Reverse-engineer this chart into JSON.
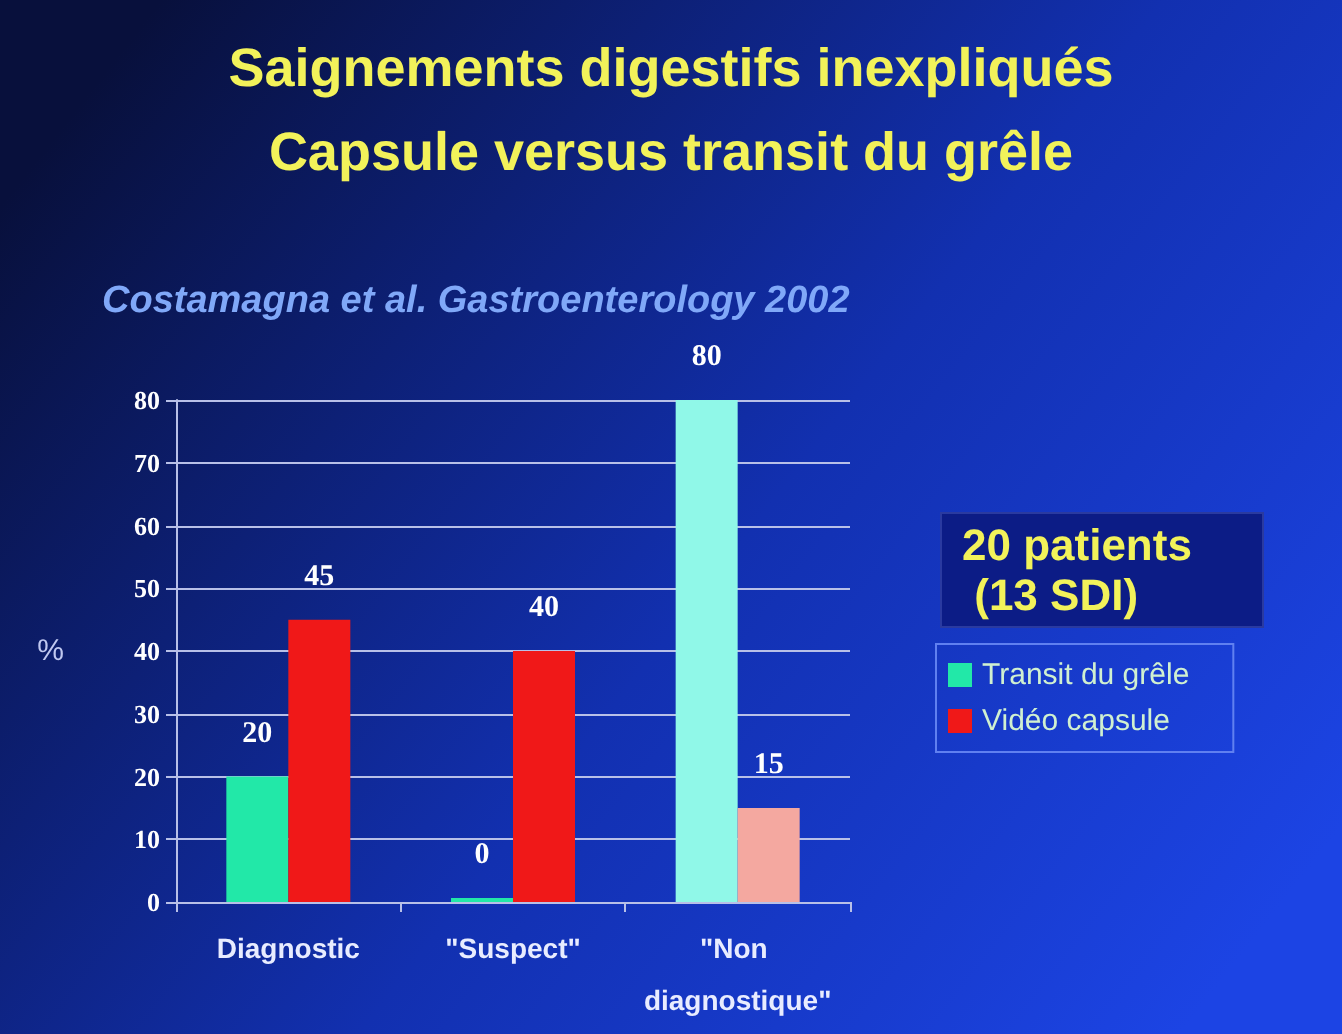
{
  "chart_data": {
    "type": "bar",
    "title": "Saignements digestifs inexpliqués\nCapsule versus transit du grêle",
    "subtitle": "Costamagna et al. Gastroenterology 2002",
    "ylabel": "%",
    "categories": [
      "Diagnostic",
      "\"Suspect\"",
      "\"Non diagnostique\""
    ],
    "series": [
      {
        "name": "Transit du grêle",
        "color": "#22e8a8",
        "colors": [
          "#22e8a8",
          "#22e8a8",
          "#90f8e8"
        ],
        "values": [
          20,
          0,
          80
        ]
      },
      {
        "name": "Vidéo capsule",
        "color": "#f01818",
        "colors": [
          "#f01818",
          "#f01818",
          "#f4a8a0"
        ],
        "values": [
          45,
          40,
          15
        ]
      }
    ],
    "ylim": [
      0,
      80
    ],
    "yticks": [
      0,
      10,
      20,
      30,
      40,
      50,
      60,
      70,
      80
    ],
    "grid": "y",
    "legend": "right",
    "data_labels": true,
    "annotations": [
      "20 patients (13 SDI)"
    ]
  }
}
